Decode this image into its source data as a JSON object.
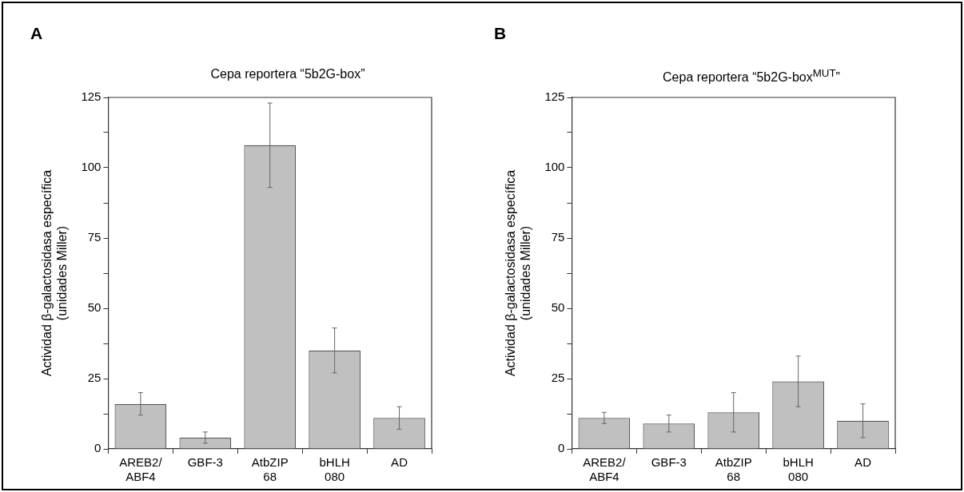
{
  "chart_data": [
    {
      "type": "bar",
      "title": "Cepa reportera “5b2G-box”",
      "ylabel": "Actividad β-galactosidasa específica\n(unidades Miller)",
      "annotations": [
        "A"
      ],
      "categories": [
        "AREB2/\nABF4",
        "GBF-3",
        "AtbZIP\n68",
        "bHLH\n080",
        "AD"
      ],
      "values": [
        16,
        4,
        108,
        35,
        11
      ],
      "errors": [
        4,
        2,
        15,
        8,
        4
      ],
      "color": "#c0c0c0",
      "ylim": [
        0,
        125
      ],
      "yticks": [
        0,
        {
          "value": 12.5,
          "label": null
        },
        25,
        {
          "value": 37.5,
          "label": null
        },
        50,
        {
          "value": 62.5,
          "label": null
        },
        75,
        {
          "value": 87.5,
          "label": null
        },
        100,
        {
          "value": 112.5,
          "label": null
        },
        125
      ]
    },
    {
      "type": "bar",
      "title": "Cepa reportera “5b2G-box$^{MUT}$”",
      "ylabel": "Actividad β-galactosidasa específica\n(unidades Miller)",
      "annotations": [
        "B"
      ],
      "categories": [
        "AREB2/\nABF4",
        "GBF-3",
        "AtbZIP\n68",
        "bHLH\n080",
        "AD"
      ],
      "values": [
        11,
        9,
        13,
        24,
        10
      ],
      "errors": [
        2,
        3,
        7,
        9,
        6
      ],
      "color": "#c0c0c0",
      "ylim": [
        0,
        125
      ],
      "yticks": [
        0,
        {
          "value": 12.5,
          "label": null
        },
        25,
        {
          "value": 37.5,
          "label": null
        },
        50,
        {
          "value": 62.5,
          "label": null
        },
        75,
        {
          "value": 87.5,
          "label": null
        },
        100,
        {
          "value": 112.5,
          "label": null
        },
        125
      ]
    }
  ]
}
